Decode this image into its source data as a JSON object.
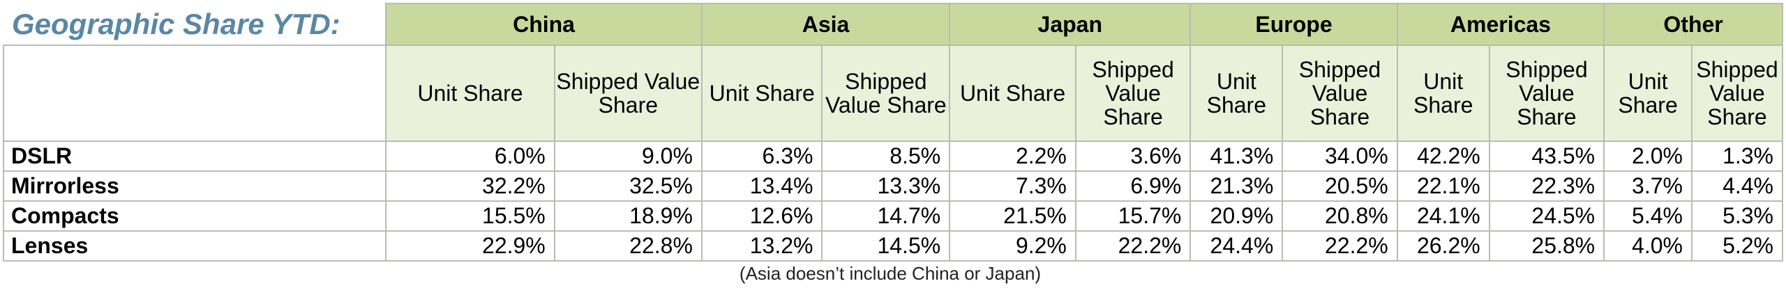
{
  "title": "Geographic Share YTD:",
  "regions": [
    "China",
    "Asia",
    "Japan",
    "Europe",
    "Americas",
    "Other"
  ],
  "sub_headers": [
    [
      "Unit Share",
      "Shipped Value Share"
    ],
    [
      "Unit Share",
      "Shipped Value Share"
    ],
    [
      "Unit Share",
      "Shipped Value Share"
    ],
    [
      "Unit Share",
      "Shipped Value Share"
    ],
    [
      "Unit Share",
      "Shipped Value Share"
    ],
    [
      "Unit Share",
      "Shipped Value Share"
    ]
  ],
  "rows": [
    {
      "label": "DSLR",
      "values": [
        "6.0%",
        "9.0%",
        "6.3%",
        "8.5%",
        "2.2%",
        "3.6%",
        "41.3%",
        "34.0%",
        "42.2%",
        "43.5%",
        "2.0%",
        "1.3%"
      ]
    },
    {
      "label": "Mirrorless",
      "values": [
        "32.2%",
        "32.5%",
        "13.4%",
        "13.3%",
        "7.3%",
        "6.9%",
        "21.3%",
        "20.5%",
        "22.1%",
        "22.3%",
        "3.7%",
        "4.4%"
      ]
    },
    {
      "label": "Compacts",
      "values": [
        "15.5%",
        "18.9%",
        "12.6%",
        "14.7%",
        "21.5%",
        "15.7%",
        "20.9%",
        "20.8%",
        "24.1%",
        "24.5%",
        "5.4%",
        "5.3%"
      ]
    },
    {
      "label": "Lenses",
      "values": [
        "22.9%",
        "22.8%",
        "13.2%",
        "14.5%",
        "9.2%",
        "22.2%",
        "24.4%",
        "22.2%",
        "26.2%",
        "25.8%",
        "4.0%",
        "5.2%"
      ]
    }
  ],
  "footnote": "(Asia doesn’t include China or Japan)"
}
